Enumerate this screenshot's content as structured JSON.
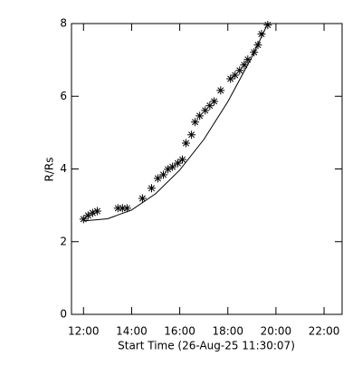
{
  "chart_data": {
    "type": "scatter",
    "xlabel": "Start Time (26-Aug-25 11:30:07)",
    "ylabel": "R/Rs",
    "xlim": [
      11.5,
      22.75
    ],
    "ylim": [
      0,
      8
    ],
    "xticks": [
      {
        "value": 12,
        "label": "12:00"
      },
      {
        "value": 14,
        "label": "14:00"
      },
      {
        "value": 16,
        "label": "16:00"
      },
      {
        "value": 18,
        "label": "18:00"
      },
      {
        "value": 20,
        "label": "20:00"
      },
      {
        "value": 22,
        "label": "22:00"
      }
    ],
    "yticks": [
      0,
      2,
      4,
      6,
      8
    ],
    "series": [
      {
        "marker": "asterisk",
        "color": "#000000",
        "x": [
          12.0,
          12.19,
          12.38,
          12.57,
          13.43,
          13.62,
          13.81,
          14.45,
          14.83,
          15.09,
          15.32,
          15.51,
          15.7,
          15.92,
          16.11,
          16.26,
          16.49,
          16.64,
          16.83,
          17.06,
          17.25,
          17.43,
          17.7,
          18.11,
          18.3,
          18.49,
          18.68,
          18.83,
          19.09,
          19.25,
          19.4,
          19.66
        ],
        "values": [
          2.62,
          2.72,
          2.79,
          2.84,
          2.92,
          2.92,
          2.92,
          3.19,
          3.47,
          3.74,
          3.84,
          3.99,
          4.06,
          4.16,
          4.26,
          4.71,
          4.94,
          5.29,
          5.46,
          5.61,
          5.74,
          5.86,
          6.16,
          6.48,
          6.58,
          6.71,
          6.86,
          7.01,
          7.21,
          7.41,
          7.71,
          7.96
        ]
      },
      {
        "marker": "line",
        "color": "#000000",
        "x": [
          12.0,
          13.0,
          14.0,
          15.0,
          16.0,
          17.0,
          18.0,
          19.0,
          19.66
        ],
        "values": [
          2.57,
          2.63,
          2.87,
          3.32,
          3.97,
          4.81,
          5.85,
          7.08,
          8.0
        ]
      }
    ]
  }
}
